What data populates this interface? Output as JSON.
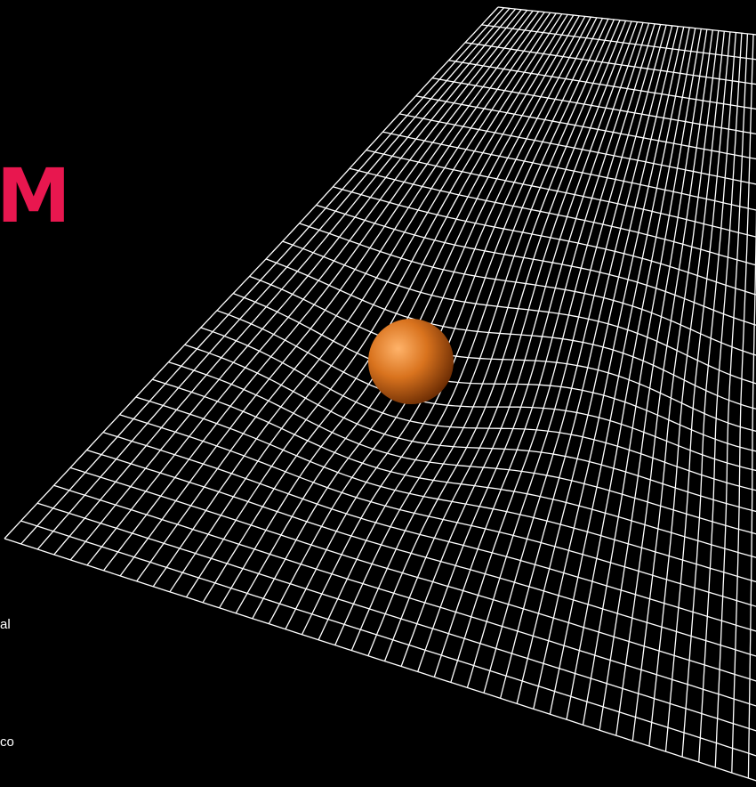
{
  "headline_fragment": "M",
  "body_fragments": [
    "al",
    "co"
  ],
  "colors": {
    "background": "#000000",
    "headline": "#e8174f",
    "grid": "#ffffff",
    "body_text": "#ffffff",
    "sphere_highlight": "#ffb36a",
    "sphere_mid": "#d9731e",
    "sphere_dark": "#5e2300"
  },
  "scene": {
    "object": "sphere",
    "surface": "warped-grid",
    "grid_rows": 30,
    "grid_cols": 46
  }
}
